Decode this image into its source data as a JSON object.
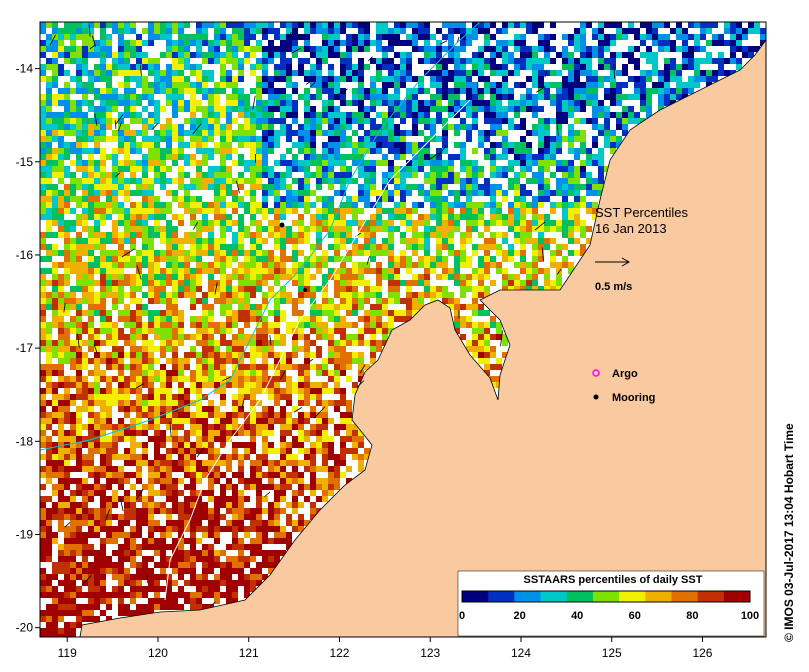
{
  "title": "SST Percentiles",
  "date": "16 Jan 2013",
  "vector_scale_label": "0.5 m/s",
  "axes": {
    "x_ticks": [
      "119",
      "120",
      "121",
      "122",
      "123",
      "124",
      "125",
      "126"
    ],
    "y_ticks": [
      "-14",
      "-15",
      "-16",
      "-17",
      "-18",
      "-19",
      "-20"
    ],
    "lon_range": [
      118.7,
      126.7
    ],
    "lat_range": [
      -20.1,
      -13.5
    ]
  },
  "legend": {
    "argo_label": "Argo",
    "mooring_label": "Mooring"
  },
  "colorbar": {
    "title": "SSTAARS percentiles of daily SST",
    "tick_labels": [
      "0",
      "20",
      "40",
      "60",
      "80",
      "100"
    ],
    "colors": [
      "#00007f",
      "#0030c0",
      "#0090e8",
      "#00c8c8",
      "#00c060",
      "#80e000",
      "#f0f000",
      "#f0b000",
      "#e07000",
      "#c03000",
      "#a00000"
    ]
  },
  "credit": "© IMOS 03-Jul-2017 13:04 Hobart Time",
  "colors": {
    "land": "#f9c9a0",
    "background": "#ffffff"
  }
}
